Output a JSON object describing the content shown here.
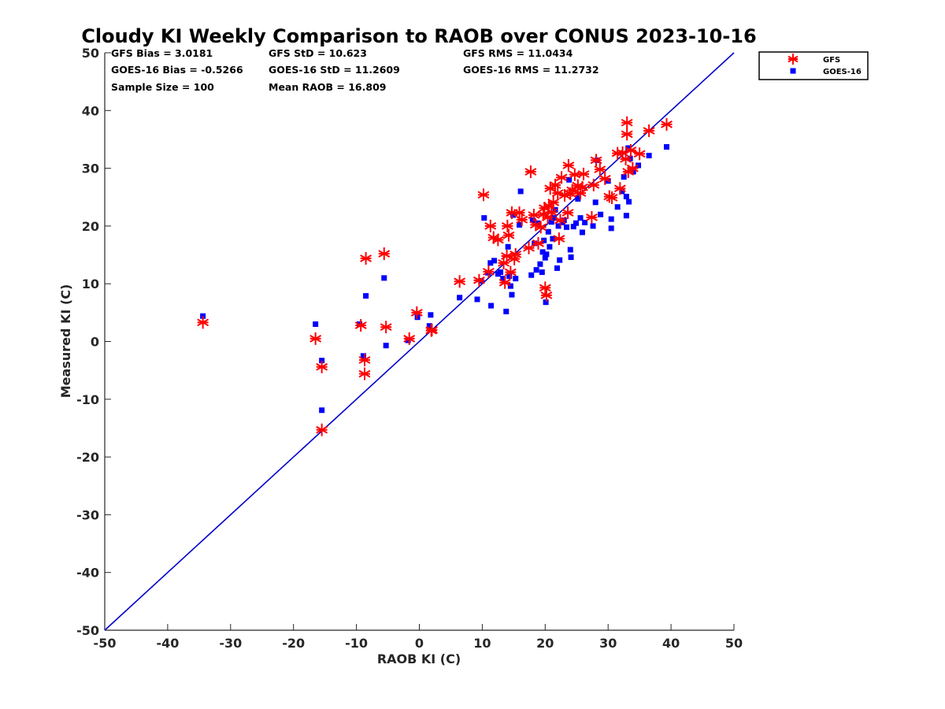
{
  "chart_data": {
    "type": "scatter",
    "title": "Cloudy KI Weekly Comparison to RAOB over CONUS 2023-10-16",
    "xlabel": "RAOB KI (C)",
    "ylabel": "Measured KI (C)",
    "xlim": [
      -50,
      50
    ],
    "ylim": [
      -50,
      50
    ],
    "xticks": [
      "-50",
      "-40",
      "-30",
      "-20",
      "-10",
      "0",
      "10",
      "20",
      "30",
      "40",
      "50"
    ],
    "yticks": [
      "-50",
      "-40",
      "-30",
      "-20",
      "-10",
      "0",
      "10",
      "20",
      "30",
      "40",
      "50"
    ],
    "grid": false,
    "legend_position": "outside-top-right",
    "reference_line": {
      "from": [
        -50,
        -50
      ],
      "to": [
        50,
        50
      ],
      "color": "#0000cc"
    },
    "stats": [
      "GFS Bias = 3.0181",
      "GFS StD = 10.623",
      "GFS RMS = 11.0434",
      "GOES-16 Bias = -0.5266",
      "GOES-16 StD = 11.2609",
      "GOES-16 RMS = 11.2732",
      "Sample Size = 100",
      "Mean RAOB = 16.809"
    ],
    "series": [
      {
        "name": "GFS",
        "marker": "asterisk",
        "color": "#ff0000",
        "points": [
          [
            -34.4,
            3.3
          ],
          [
            -16.5,
            0.5
          ],
          [
            -15.5,
            -4.4
          ],
          [
            -15.5,
            -15.3
          ],
          [
            -9.3,
            2.8
          ],
          [
            -8.7,
            -3.2
          ],
          [
            -8.7,
            -5.6
          ],
          [
            -8.5,
            14.4
          ],
          [
            -5.6,
            15.2
          ],
          [
            -5.3,
            2.5
          ],
          [
            -1.6,
            0.5
          ],
          [
            -0.4,
            5.0
          ],
          [
            1.9,
            1.9
          ],
          [
            2.0,
            2.0
          ],
          [
            6.4,
            10.4
          ],
          [
            9.5,
            10.6
          ],
          [
            10.2,
            25.4
          ],
          [
            11.0,
            12.1
          ],
          [
            11.3,
            20.0
          ],
          [
            11.8,
            18.0
          ],
          [
            12.5,
            17.6
          ],
          [
            13.4,
            13.6
          ],
          [
            13.6,
            10.2
          ],
          [
            13.9,
            14.8
          ],
          [
            14.0,
            20.0
          ],
          [
            14.2,
            18.4
          ],
          [
            14.5,
            12.0
          ],
          [
            14.7,
            22.3
          ],
          [
            15.1,
            14.3
          ],
          [
            15.3,
            15.1
          ],
          [
            15.9,
            22.3
          ],
          [
            16.3,
            21.1
          ],
          [
            17.4,
            16.2
          ],
          [
            17.7,
            29.4
          ],
          [
            18.2,
            21.9
          ],
          [
            18.5,
            20.2
          ],
          [
            18.9,
            17.0
          ],
          [
            19.3,
            19.8
          ],
          [
            19.7,
            22.0
          ],
          [
            19.9,
            23.1
          ],
          [
            20.0,
            9.3
          ],
          [
            20.2,
            8.0
          ],
          [
            20.4,
            21.5
          ],
          [
            20.6,
            23.5
          ],
          [
            20.8,
            26.5
          ],
          [
            21.0,
            22.4
          ],
          [
            21.3,
            24.1
          ],
          [
            21.6,
            27.1
          ],
          [
            22.0,
            25.7
          ],
          [
            22.2,
            17.8
          ],
          [
            22.4,
            21.0
          ],
          [
            22.6,
            28.4
          ],
          [
            23.1,
            25.3
          ],
          [
            23.6,
            22.3
          ],
          [
            23.7,
            30.5
          ],
          [
            24.0,
            25.6
          ],
          [
            24.3,
            26.2
          ],
          [
            24.7,
            28.9
          ],
          [
            25.2,
            27.0
          ],
          [
            25.6,
            25.7
          ],
          [
            25.9,
            26.7
          ],
          [
            26.1,
            29.0
          ],
          [
            27.4,
            21.5
          ],
          [
            27.7,
            27.1
          ],
          [
            28.1,
            31.4
          ],
          [
            28.7,
            29.8
          ],
          [
            29.5,
            28.2
          ],
          [
            30.2,
            25.1
          ],
          [
            30.6,
            24.9
          ],
          [
            31.5,
            32.6
          ],
          [
            31.9,
            26.5
          ],
          [
            32.3,
            32.7
          ],
          [
            32.8,
            31.6
          ],
          [
            33.0,
            37.9
          ],
          [
            33.0,
            35.9
          ],
          [
            33.2,
            29.4
          ],
          [
            33.6,
            33.1
          ],
          [
            33.9,
            30.0
          ],
          [
            35.0,
            32.5
          ],
          [
            36.5,
            36.5
          ],
          [
            39.3,
            37.6
          ]
        ]
      },
      {
        "name": "GOES-16",
        "marker": "square",
        "color": "#0000ff",
        "points": [
          [
            -34.4,
            4.4
          ],
          [
            -16.5,
            3.0
          ],
          [
            -15.5,
            -3.3
          ],
          [
            -15.5,
            -11.9
          ],
          [
            -9.5,
            3.0
          ],
          [
            -8.9,
            -2.5
          ],
          [
            -8.5,
            7.9
          ],
          [
            -5.6,
            11.0
          ],
          [
            -5.3,
            -0.7
          ],
          [
            -1.8,
            0.2
          ],
          [
            -0.3,
            4.2
          ],
          [
            1.6,
            2.7
          ],
          [
            1.8,
            4.6
          ],
          [
            6.4,
            7.6
          ],
          [
            9.2,
            7.3
          ],
          [
            9.8,
            10.5
          ],
          [
            10.3,
            21.4
          ],
          [
            10.9,
            11.9
          ],
          [
            11.3,
            13.6
          ],
          [
            11.4,
            6.2
          ],
          [
            11.9,
            14.0
          ],
          [
            12.5,
            11.7
          ],
          [
            12.9,
            12.0
          ],
          [
            13.3,
            10.9
          ],
          [
            13.8,
            5.2
          ],
          [
            14.1,
            16.4
          ],
          [
            14.3,
            11.3
          ],
          [
            14.5,
            9.6
          ],
          [
            14.7,
            8.1
          ],
          [
            14.9,
            21.9
          ],
          [
            15.3,
            10.9
          ],
          [
            15.9,
            20.2
          ],
          [
            16.1,
            26.0
          ],
          [
            17.8,
            11.5
          ],
          [
            18.0,
            21.0
          ],
          [
            18.3,
            17.0
          ],
          [
            18.6,
            12.4
          ],
          [
            18.8,
            20.5
          ],
          [
            19.2,
            13.4
          ],
          [
            19.5,
            12.0
          ],
          [
            19.6,
            15.5
          ],
          [
            19.8,
            17.5
          ],
          [
            20.0,
            14.5
          ],
          [
            20.1,
            6.8
          ],
          [
            20.2,
            15.1
          ],
          [
            20.5,
            19.0
          ],
          [
            20.7,
            16.4
          ],
          [
            21.0,
            20.7
          ],
          [
            21.2,
            17.8
          ],
          [
            21.4,
            21.4
          ],
          [
            21.6,
            22.8
          ],
          [
            21.9,
            12.7
          ],
          [
            22.1,
            20.0
          ],
          [
            22.3,
            14.1
          ],
          [
            22.7,
            20.6
          ],
          [
            23.0,
            21.0
          ],
          [
            23.4,
            19.8
          ],
          [
            23.8,
            28.0
          ],
          [
            24.0,
            15.9
          ],
          [
            24.1,
            14.6
          ],
          [
            24.5,
            19.9
          ],
          [
            24.9,
            20.5
          ],
          [
            25.2,
            24.7
          ],
          [
            25.6,
            21.4
          ],
          [
            25.9,
            18.9
          ],
          [
            26.3,
            20.6
          ],
          [
            27.6,
            20.0
          ],
          [
            28.0,
            24.1
          ],
          [
            28.3,
            31.4
          ],
          [
            28.8,
            22.0
          ],
          [
            30.0,
            27.8
          ],
          [
            30.5,
            21.2
          ],
          [
            30.5,
            19.6
          ],
          [
            31.5,
            23.3
          ],
          [
            32.2,
            26.0
          ],
          [
            32.5,
            28.5
          ],
          [
            32.9,
            21.8
          ],
          [
            33.3,
            24.2
          ],
          [
            33.5,
            31.7
          ],
          [
            34.0,
            29.4
          ],
          [
            34.8,
            30.5
          ],
          [
            36.5,
            32.2
          ],
          [
            39.3,
            33.7
          ],
          [
            33.2,
            33.5
          ],
          [
            32.9,
            25.1
          ]
        ]
      }
    ]
  }
}
